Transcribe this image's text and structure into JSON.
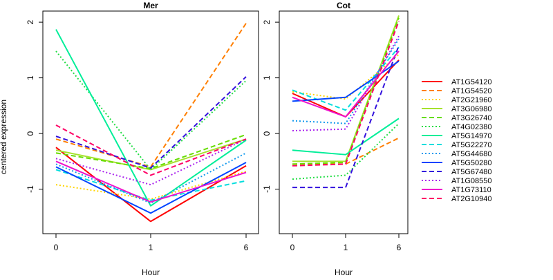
{
  "chart_data": {
    "type": "line",
    "ylabel": "centered expression",
    "panels": [
      {
        "title": "Mer",
        "xlabel": "Hour",
        "x": [
          "0",
          "1",
          "6"
        ],
        "ylim": [
          -1.8,
          2.2
        ],
        "yticks": [
          "-1",
          "0",
          "1",
          "2"
        ],
        "series": [
          {
            "name": "AT1G54120",
            "values": [
              -0.25,
              -1.58,
              -0.58
            ]
          },
          {
            "name": "AT1G54520",
            "values": [
              -0.1,
              -0.6,
              1.98
            ]
          },
          {
            "name": "AT2G21960",
            "values": [
              -0.92,
              -1.18,
              -0.68
            ]
          },
          {
            "name": "AT3G06980",
            "values": [
              -0.3,
              -0.65,
              -0.1
            ]
          },
          {
            "name": "AT3G26740",
            "values": [
              -0.35,
              -0.63,
              -0.02
            ]
          },
          {
            "name": "AT4G02380",
            "values": [
              1.48,
              -0.65,
              0.95
            ]
          },
          {
            "name": "AT5G14970",
            "values": [
              1.87,
              -1.3,
              -0.12
            ]
          },
          {
            "name": "AT5G22270",
            "values": [
              -0.65,
              -1.2,
              -0.85
            ]
          },
          {
            "name": "AT5G44680",
            "values": [
              -0.55,
              -1.25,
              -0.35
            ]
          },
          {
            "name": "AT5G50280",
            "values": [
              -0.6,
              -1.43,
              -0.52
            ]
          },
          {
            "name": "AT5G67480",
            "values": [
              -0.05,
              -0.62,
              1.02
            ]
          },
          {
            "name": "AT1G08550",
            "values": [
              -0.45,
              -0.92,
              -0.1
            ]
          },
          {
            "name": "AT1G73110",
            "values": [
              -0.5,
              -1.23,
              -0.7
            ]
          },
          {
            "name": "AT2G10940",
            "values": [
              0.15,
              -0.75,
              -0.1
            ]
          }
        ]
      },
      {
        "title": "Cot",
        "xlabel": "Hour",
        "x": [
          "0",
          "1",
          "6"
        ],
        "ylim": [
          -1.8,
          2.2
        ],
        "yticks": [
          "-1",
          "0",
          "1",
          "2"
        ],
        "series": [
          {
            "name": "AT1G54120",
            "values": [
              0.72,
              0.3,
              1.32
            ]
          },
          {
            "name": "AT1G54520",
            "values": [
              -0.55,
              -0.55,
              -0.08
            ]
          },
          {
            "name": "AT2G21960",
            "values": [
              0.75,
              0.62,
              1.42
            ]
          },
          {
            "name": "AT3G06980",
            "values": [
              -0.5,
              -0.5,
              2.12
            ]
          },
          {
            "name": "AT3G26740",
            "values": [
              -0.55,
              -0.52,
              2.08
            ]
          },
          {
            "name": "AT4G02380",
            "values": [
              -0.82,
              -0.75,
              0.18
            ]
          },
          {
            "name": "AT5G14970",
            "values": [
              -0.3,
              -0.38,
              0.27
            ]
          },
          {
            "name": "AT5G22270",
            "values": [
              0.78,
              0.42,
              1.55
            ]
          },
          {
            "name": "AT5G44680",
            "values": [
              0.23,
              0.18,
              1.7
            ]
          },
          {
            "name": "AT5G50280",
            "values": [
              0.58,
              0.65,
              1.3
            ]
          },
          {
            "name": "AT5G67480",
            "values": [
              -0.97,
              -0.97,
              1.58
            ]
          },
          {
            "name": "AT1G08550",
            "values": [
              0.05,
              0.08,
              1.75
            ]
          },
          {
            "name": "AT1G73110",
            "values": [
              0.65,
              0.3,
              1.48
            ]
          },
          {
            "name": "AT2G10940",
            "values": [
              -0.58,
              -0.55,
              2.02
            ]
          }
        ]
      }
    ],
    "legend": {
      "placement": "right",
      "entries": [
        {
          "label": "AT1G54120",
          "color": "#ff0000",
          "dash": "solid"
        },
        {
          "label": "AT1G54520",
          "color": "#ff7f00",
          "dash": "dashed"
        },
        {
          "label": "AT2G21960",
          "color": "#ffd400",
          "dash": "dotted"
        },
        {
          "label": "AT3G06980",
          "color": "#a6e22e",
          "dash": "solid"
        },
        {
          "label": "AT3G26740",
          "color": "#66dd00",
          "dash": "dashed"
        },
        {
          "label": "AT4G02380",
          "color": "#22dd44",
          "dash": "dotted"
        },
        {
          "label": "AT5G14970",
          "color": "#00ee99",
          "dash": "solid"
        },
        {
          "label": "AT5G22270",
          "color": "#00dddd",
          "dash": "dashed"
        },
        {
          "label": "AT5G44680",
          "color": "#1199ee",
          "dash": "dotted"
        },
        {
          "label": "AT5G50280",
          "color": "#0044ff",
          "dash": "solid"
        },
        {
          "label": "AT5G67480",
          "color": "#3311dd",
          "dash": "dashed"
        },
        {
          "label": "AT1G08550",
          "color": "#aa22ee",
          "dash": "dotted"
        },
        {
          "label": "AT1G73110",
          "color": "#ee11cc",
          "dash": "solid"
        },
        {
          "label": "AT2G10940",
          "color": "#ff0066",
          "dash": "dashed"
        }
      ]
    },
    "grid": false
  }
}
